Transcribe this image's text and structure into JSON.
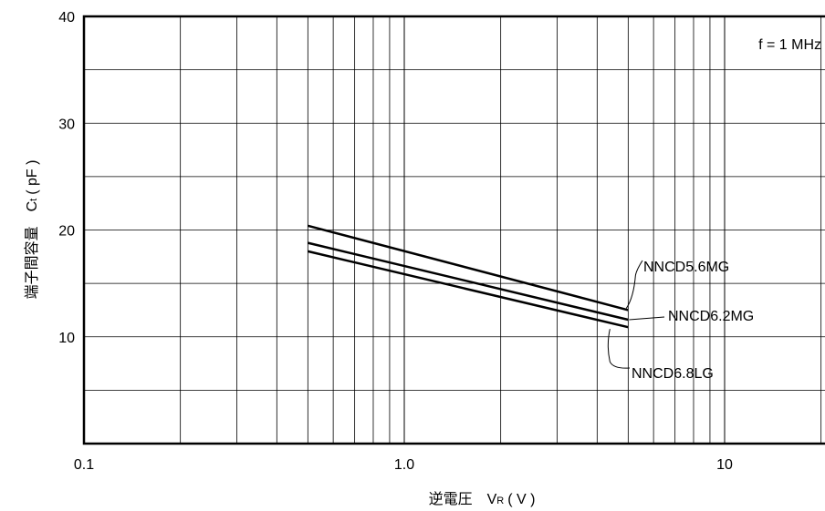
{
  "chart_data": {
    "type": "line",
    "xscale": "log",
    "xlim": [
      0.1,
      20
    ],
    "ylim": [
      0,
      40
    ],
    "x_ticks": [
      {
        "value": 0.1,
        "label": "0.1"
      },
      {
        "value": 1.0,
        "label": "1.0"
      },
      {
        "value": 10,
        "label": "10"
      }
    ],
    "y_ticks": [
      {
        "value": 10,
        "label": "10"
      },
      {
        "value": 20,
        "label": "20"
      },
      {
        "value": 30,
        "label": "30"
      },
      {
        "value": 40,
        "label": "40"
      }
    ],
    "grid": true,
    "y_minor_gridlines": [
      5,
      15,
      25,
      35
    ],
    "xlabel": "逆電圧　V",
    "xlabel_sub": "R",
    "xlabel_unit": "( V )",
    "ylabel": "端子間容量　C",
    "ylabel_sub": "t",
    "ylabel_unit": "( pF )",
    "annotation": "f = 1 MHz",
    "series": [
      {
        "name": "NNCD5.6MG",
        "x": [
          0.5,
          5
        ],
        "y": [
          20.4,
          12.5
        ]
      },
      {
        "name": "NNCD6.2MG",
        "x": [
          0.5,
          5
        ],
        "y": [
          18.8,
          11.6
        ]
      },
      {
        "name": "NNCD6.8LG",
        "x": [
          0.5,
          5
        ],
        "y": [
          18.0,
          10.9
        ]
      }
    ]
  }
}
